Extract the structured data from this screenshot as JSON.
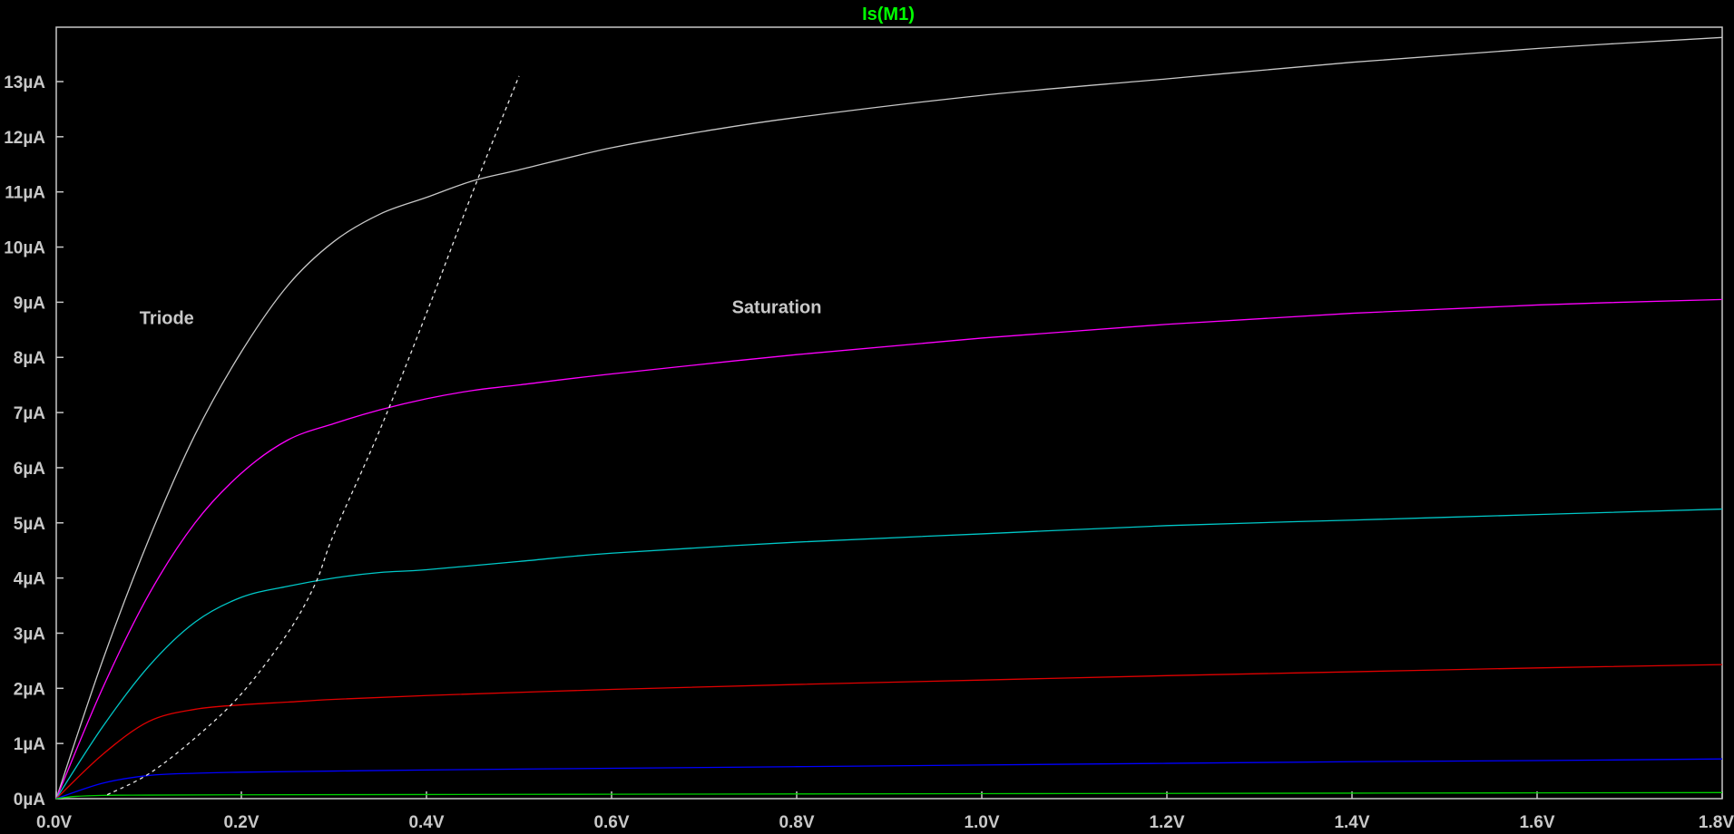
{
  "chart_data": {
    "type": "line",
    "title": "Is(M1)",
    "title_color": "#00ff00",
    "background": "#000000",
    "axis_color": "#c8c8c8",
    "xlim": [
      0.0,
      1.8
    ],
    "ylim": [
      0,
      14
    ],
    "x_ticks": [
      0.0,
      0.2,
      0.4,
      0.6,
      0.8,
      1.0,
      1.2,
      1.4,
      1.6,
      1.8
    ],
    "x_tick_labels": [
      "0.0V",
      "0.2V",
      "0.4V",
      "0.6V",
      "0.8V",
      "1.0V",
      "1.2V",
      "1.4V",
      "1.6V",
      "1.8V"
    ],
    "y_ticks": [
      0,
      1,
      2,
      3,
      4,
      5,
      6,
      7,
      8,
      9,
      10,
      11,
      12,
      13
    ],
    "y_tick_labels": [
      "0µA",
      "1µA",
      "2µA",
      "3µA",
      "4µA",
      "5µA",
      "6µA",
      "7µA",
      "8µA",
      "9µA",
      "10µA",
      "11µA",
      "12µA",
      "13µA"
    ],
    "grid": false,
    "series": [
      {
        "color": "#c8c8c8",
        "x": [
          0,
          0.05,
          0.1,
          0.15,
          0.2,
          0.25,
          0.3,
          0.35,
          0.4,
          0.45,
          0.5,
          0.6,
          0.7,
          0.8,
          1.0,
          1.2,
          1.4,
          1.6,
          1.8
        ],
        "y": [
          0,
          2.5,
          4.7,
          6.6,
          8.1,
          9.3,
          10.1,
          10.6,
          10.9,
          11.2,
          11.4,
          11.8,
          12.1,
          12.35,
          12.75,
          13.05,
          13.35,
          13.6,
          13.8
        ]
      },
      {
        "color": "#ff00ff",
        "x": [
          0,
          0.05,
          0.1,
          0.15,
          0.2,
          0.25,
          0.3,
          0.35,
          0.4,
          0.45,
          0.5,
          0.6,
          0.8,
          1.0,
          1.2,
          1.4,
          1.6,
          1.8
        ],
        "y": [
          0,
          2.0,
          3.7,
          5.0,
          5.9,
          6.5,
          6.8,
          7.05,
          7.25,
          7.4,
          7.5,
          7.7,
          8.05,
          8.35,
          8.6,
          8.8,
          8.95,
          9.05
        ]
      },
      {
        "color": "#00c8c8",
        "x": [
          0,
          0.05,
          0.1,
          0.15,
          0.2,
          0.25,
          0.3,
          0.35,
          0.4,
          0.5,
          0.6,
          0.8,
          1.0,
          1.2,
          1.4,
          1.6,
          1.8
        ],
        "y": [
          0,
          1.3,
          2.4,
          3.2,
          3.65,
          3.85,
          4.0,
          4.1,
          4.15,
          4.3,
          4.45,
          4.65,
          4.8,
          4.95,
          5.05,
          5.15,
          5.25
        ]
      },
      {
        "color": "#e00000",
        "x": [
          0,
          0.05,
          0.1,
          0.15,
          0.2,
          0.25,
          0.3,
          0.4,
          0.6,
          0.8,
          1.0,
          1.2,
          1.4,
          1.6,
          1.8
        ],
        "y": [
          0,
          0.8,
          1.4,
          1.62,
          1.7,
          1.75,
          1.8,
          1.87,
          1.98,
          2.07,
          2.15,
          2.23,
          2.3,
          2.37,
          2.43
        ]
      },
      {
        "color": "#0000ff",
        "x": [
          0,
          0.05,
          0.1,
          0.15,
          0.2,
          0.3,
          0.4,
          0.6,
          0.8,
          1.0,
          1.2,
          1.4,
          1.6,
          1.8
        ],
        "y": [
          0,
          0.28,
          0.42,
          0.46,
          0.48,
          0.5,
          0.52,
          0.55,
          0.58,
          0.61,
          0.64,
          0.67,
          0.69,
          0.72
        ]
      },
      {
        "color": "#00d000",
        "x": [
          0,
          0.02,
          0.05,
          0.1,
          0.2,
          0.4,
          0.6,
          0.8,
          1.0,
          1.2,
          1.4,
          1.6,
          1.8
        ],
        "y": [
          0,
          0.04,
          0.06,
          0.065,
          0.07,
          0.075,
          0.08,
          0.085,
          0.09,
          0.095,
          0.1,
          0.105,
          0.11
        ]
      },
      {
        "color": "#e6e6e6",
        "dashed": true,
        "x": [
          0.055,
          0.1,
          0.15,
          0.2,
          0.25,
          0.28,
          0.3,
          0.35,
          0.4,
          0.45,
          0.5
        ],
        "y": [
          0.07,
          0.45,
          1.1,
          1.9,
          3.0,
          3.9,
          4.8,
          6.7,
          8.8,
          11.0,
          13.1
        ]
      }
    ],
    "annotations": [
      {
        "text": "Triode",
        "x": 0.09,
        "y": 8.6
      },
      {
        "text": "Saturation",
        "x": 0.73,
        "y": 8.8
      }
    ]
  }
}
